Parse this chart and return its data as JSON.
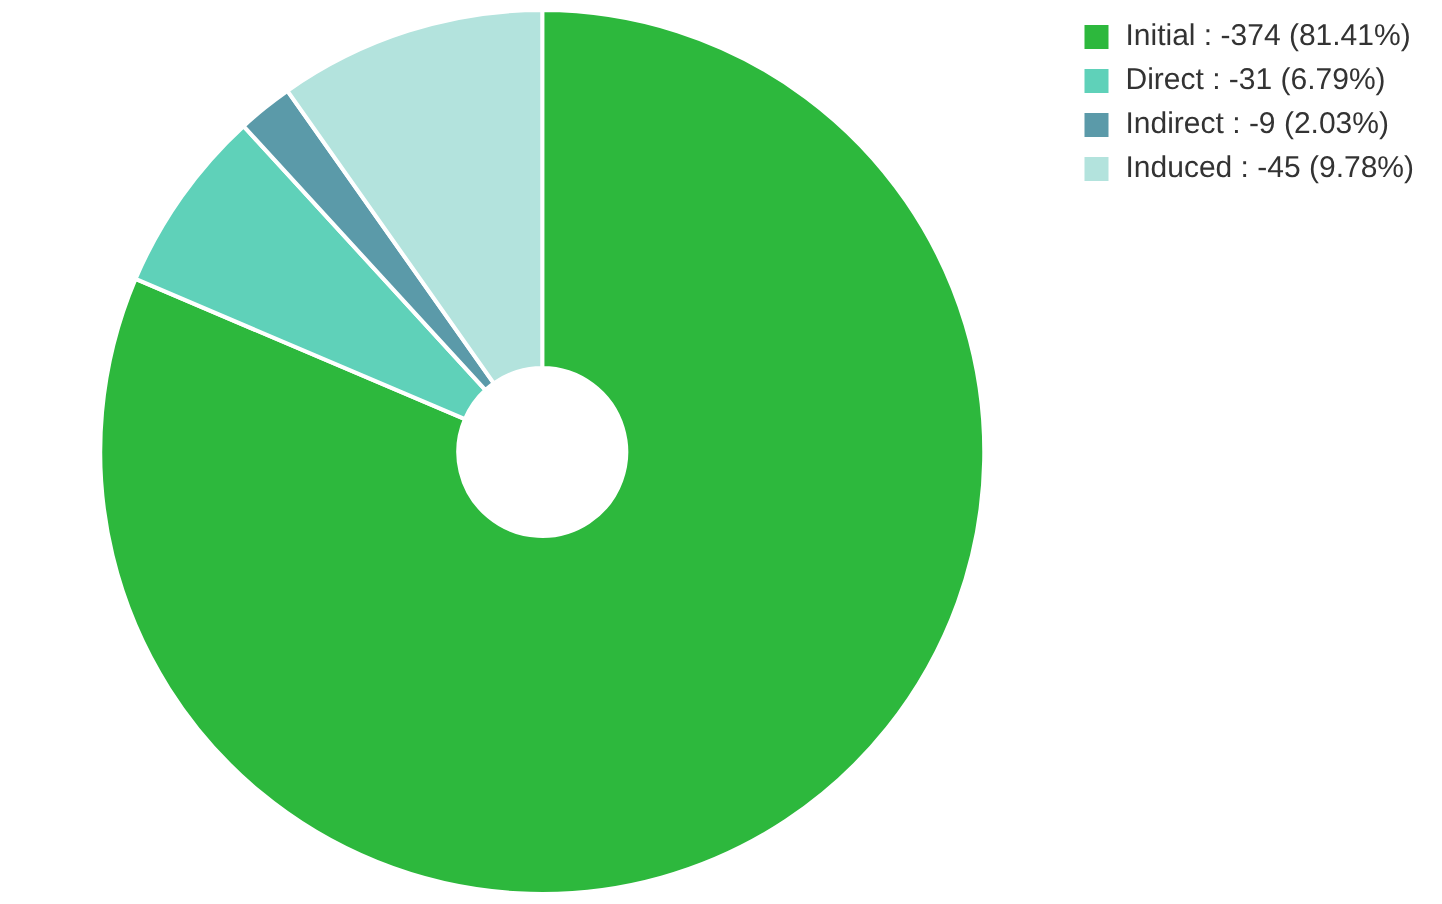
{
  "chart_data": {
    "type": "donut",
    "categories": [
      "Initial",
      "Direct",
      "Indirect",
      "Induced"
    ],
    "values": [
      81.41,
      6.79,
      2.03,
      9.78
    ],
    "value_labels": [
      "-374 (81.41%)",
      "-31 (6.79%)",
      "-9 (2.03%)",
      "-45 (9.78%)"
    ],
    "colors": [
      "#2db83d",
      "#5fd1b9",
      "#5b9aa9",
      "#b3e3dd"
    ],
    "legend": "top right"
  }
}
